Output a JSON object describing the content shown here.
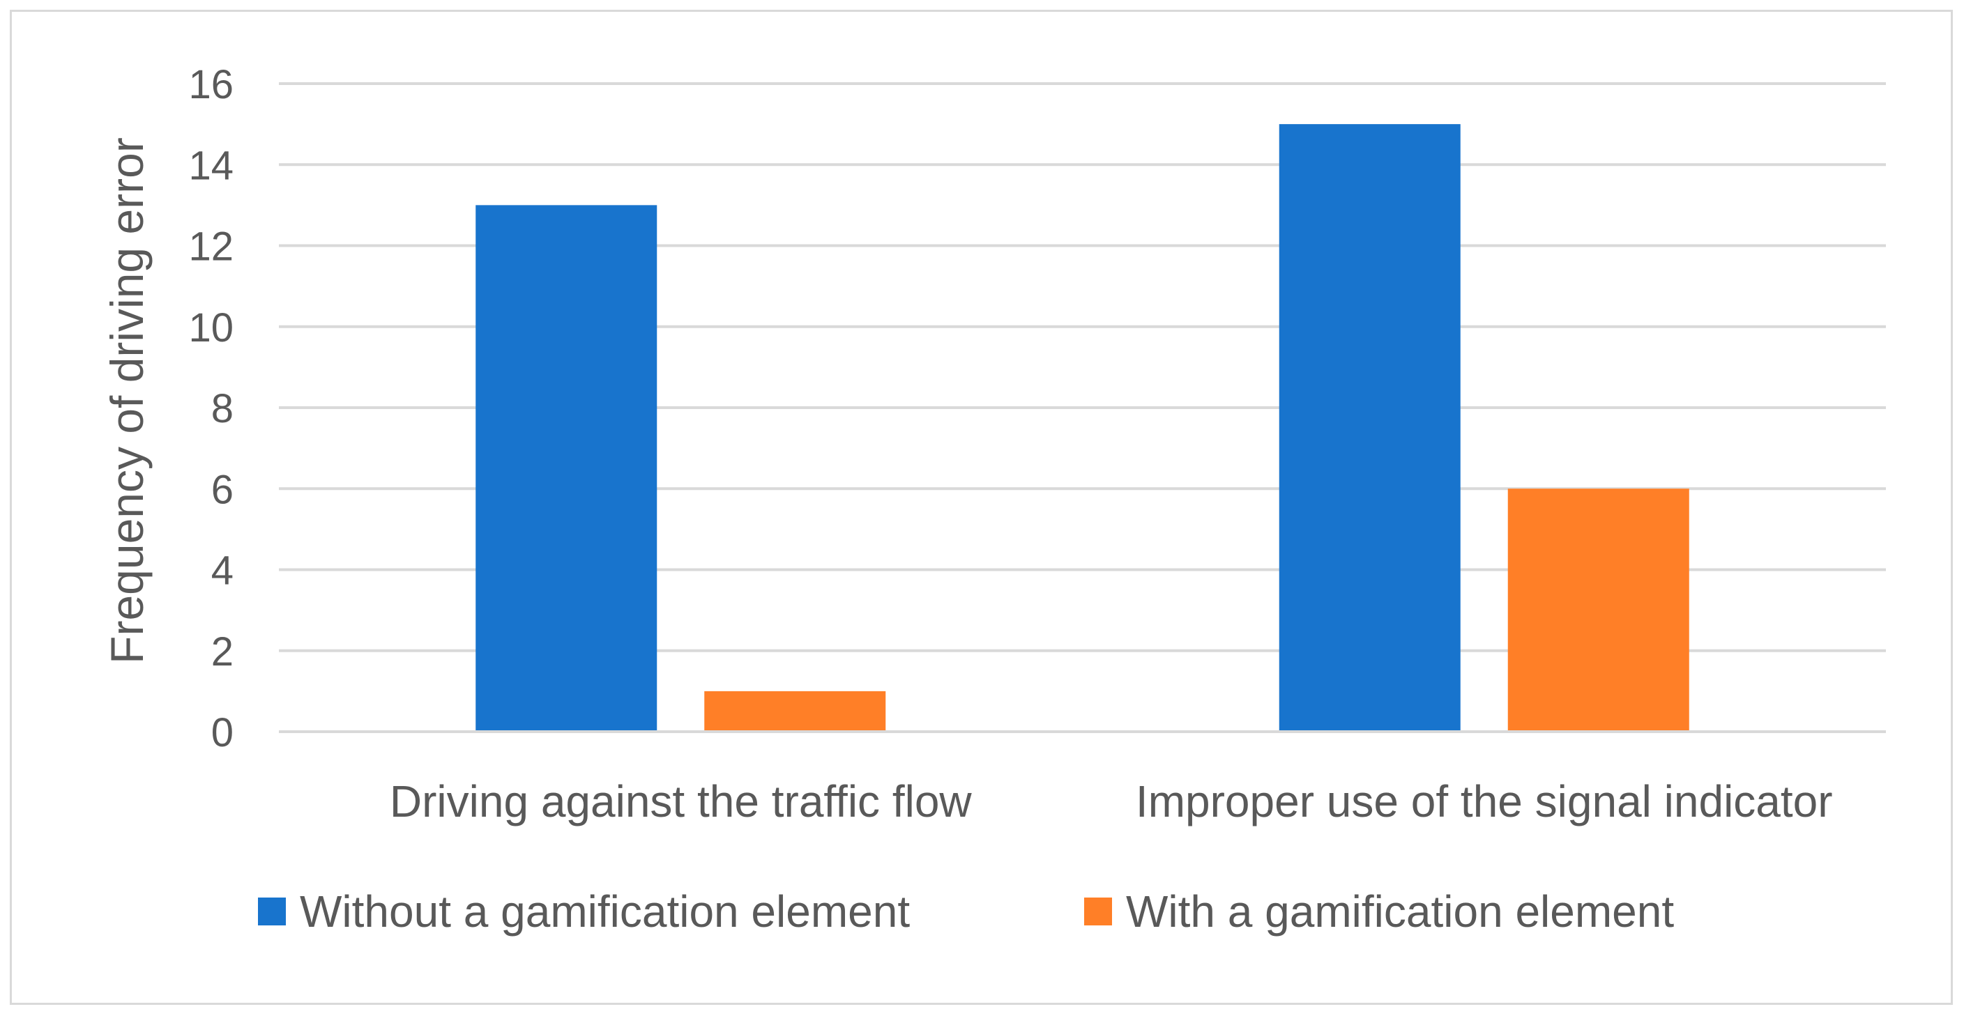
{
  "chart_data": {
    "type": "bar",
    "title": "",
    "xlabel": "",
    "ylabel": "Frequency of driving error",
    "ylim": [
      0,
      16
    ],
    "yticks": [
      0,
      2,
      4,
      6,
      8,
      10,
      12,
      14,
      16
    ],
    "categories": [
      "Driving against the traffic flow",
      "Improper use of the signal indicator"
    ],
    "series": [
      {
        "name": "Without a gamification element",
        "values": [
          13,
          15
        ],
        "color": "#1874CD"
      },
      {
        "name": "With a gamification element",
        "values": [
          1,
          6
        ],
        "color": "#FF7F27"
      }
    ],
    "grid": true,
    "legend": "bottom"
  }
}
